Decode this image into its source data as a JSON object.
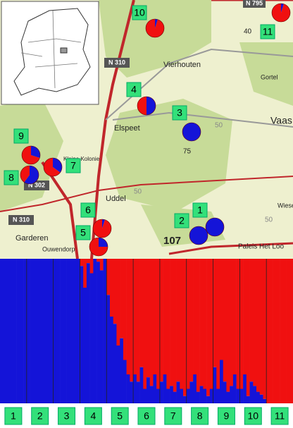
{
  "map": {
    "places": [
      "Vierhouten",
      "Elspeet",
      "Uddel",
      "Garderen",
      "Ouwendorp",
      "Paleis Het Loo",
      "Vaas",
      "Gortel",
      "Kleine Kolonie",
      "Wiese"
    ],
    "roads": [
      "N 310",
      "N 302",
      "N 310",
      "N 795"
    ],
    "numbers": [
      "107",
      "75",
      "40",
      "50",
      "50",
      "50"
    ],
    "sites": [
      {
        "label": "1",
        "blue": 1
      },
      {
        "label": "2",
        "blue": 1
      },
      {
        "label": "3",
        "blue": 1
      },
      {
        "label": "4",
        "blue": 0.5
      },
      {
        "label": "5",
        "blue": 0.25
      },
      {
        "label": "6",
        "blue": 0.05
      },
      {
        "label": "7",
        "blue": 0.35
      },
      {
        "label": "8",
        "blue": 0.6
      },
      {
        "label": "9",
        "blue": 0.3
      },
      {
        "label": "10",
        "blue": 0.05
      },
      {
        "label": "11",
        "blue": 0.05
      }
    ]
  },
  "structure": {
    "populations": [
      {
        "label": "1",
        "blue": [
          1,
          1,
          1,
          1,
          1,
          1,
          1,
          1
        ]
      },
      {
        "label": "2",
        "blue": [
          1,
          1,
          1,
          1,
          1,
          1,
          1,
          1
        ]
      },
      {
        "label": "3",
        "blue": [
          1,
          1,
          1,
          1,
          1,
          1,
          1,
          1
        ]
      },
      {
        "label": "4",
        "blue": [
          0.95,
          0.8,
          0.97,
          0.9,
          1,
          0.98,
          0.92,
          1
        ]
      },
      {
        "label": "5",
        "blue": [
          0.75,
          0.6,
          0.55,
          0.4,
          0.45,
          0.3,
          0.2,
          0.15
        ]
      },
      {
        "label": "6",
        "blue": [
          0.2,
          0.15,
          0.25,
          0.1,
          0.18,
          0.12,
          0.2,
          0.1
        ]
      },
      {
        "label": "7",
        "blue": [
          0.15,
          0.2,
          0.1,
          0.12,
          0.08,
          0.15,
          0.1,
          0.05
        ]
      },
      {
        "label": "8",
        "blue": [
          0.1,
          0.15,
          0.2,
          0.08,
          0.12,
          0.1,
          0.05,
          0.1
        ]
      },
      {
        "label": "9",
        "blue": [
          0.25,
          0.1,
          0.3,
          0.15,
          0.08,
          0.12,
          0.2,
          0.1
        ]
      },
      {
        "label": "10",
        "blue": [
          0.1,
          0.2,
          0.05,
          0.15,
          0.12,
          0.08,
          0.06,
          0.03
        ]
      },
      {
        "label": "11",
        "blue": [
          0,
          0,
          0,
          0,
          0,
          0,
          0,
          0
        ]
      }
    ]
  }
}
